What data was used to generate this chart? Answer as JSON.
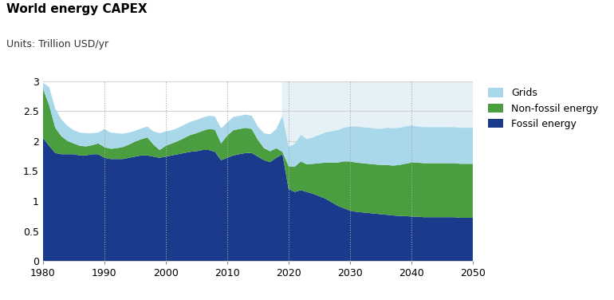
{
  "title": "World energy CAPEX",
  "subtitle": "Units: Trillion USD/yr",
  "colors": {
    "grids": "#a8d8ea",
    "non_fossil": "#4a9e3f",
    "fossil": "#1a3a8c",
    "forecast_bg": "#daeaf5"
  },
  "forecast_start": 2019,
  "xlim": [
    1980,
    2050
  ],
  "ylim": [
    0,
    3.0
  ],
  "yticks": [
    0,
    0.5,
    1.0,
    1.5,
    2.0,
    2.5,
    3.0
  ],
  "xticks": [
    1980,
    1990,
    2000,
    2010,
    2020,
    2030,
    2040,
    2050
  ],
  "vgrid_ticks": [
    1990,
    2000,
    2010,
    2020,
    2030,
    2040
  ],
  "legend_labels": [
    "Grids",
    "Non-fossil energy",
    "Fossil energy"
  ],
  "years": [
    1980,
    1981,
    1982,
    1983,
    1984,
    1985,
    1986,
    1987,
    1988,
    1989,
    1990,
    1991,
    1992,
    1993,
    1994,
    1995,
    1996,
    1997,
    1998,
    1999,
    2000,
    2001,
    2002,
    2003,
    2004,
    2005,
    2006,
    2007,
    2008,
    2009,
    2010,
    2011,
    2012,
    2013,
    2014,
    2015,
    2016,
    2017,
    2018,
    2019,
    2020,
    2021,
    2022,
    2023,
    2024,
    2025,
    2026,
    2027,
    2028,
    2029,
    2030,
    2031,
    2032,
    2033,
    2034,
    2035,
    2036,
    2037,
    2038,
    2039,
    2040,
    2041,
    2042,
    2043,
    2044,
    2045,
    2046,
    2047,
    2048,
    2049,
    2050
  ],
  "fossil": [
    2.05,
    1.92,
    1.8,
    1.78,
    1.78,
    1.78,
    1.76,
    1.76,
    1.78,
    1.78,
    1.72,
    1.7,
    1.7,
    1.7,
    1.72,
    1.74,
    1.76,
    1.76,
    1.74,
    1.72,
    1.74,
    1.76,
    1.78,
    1.8,
    1.82,
    1.83,
    1.85,
    1.85,
    1.82,
    1.68,
    1.72,
    1.76,
    1.78,
    1.8,
    1.8,
    1.74,
    1.68,
    1.65,
    1.72,
    1.78,
    1.2,
    1.15,
    1.18,
    1.15,
    1.12,
    1.08,
    1.04,
    0.98,
    0.92,
    0.88,
    0.84,
    0.82,
    0.81,
    0.8,
    0.79,
    0.78,
    0.77,
    0.76,
    0.75,
    0.75,
    0.74,
    0.74,
    0.73,
    0.73,
    0.73,
    0.73,
    0.73,
    0.73,
    0.72,
    0.72,
    0.72
  ],
  "non_fossil": [
    0.82,
    0.68,
    0.42,
    0.3,
    0.22,
    0.18,
    0.16,
    0.15,
    0.15,
    0.18,
    0.18,
    0.17,
    0.18,
    0.2,
    0.22,
    0.25,
    0.27,
    0.3,
    0.2,
    0.13,
    0.18,
    0.2,
    0.22,
    0.25,
    0.28,
    0.3,
    0.32,
    0.35,
    0.37,
    0.28,
    0.37,
    0.42,
    0.42,
    0.42,
    0.4,
    0.28,
    0.2,
    0.18,
    0.16,
    0.04,
    0.38,
    0.42,
    0.48,
    0.46,
    0.5,
    0.55,
    0.6,
    0.66,
    0.72,
    0.78,
    0.82,
    0.82,
    0.82,
    0.82,
    0.82,
    0.82,
    0.83,
    0.83,
    0.85,
    0.87,
    0.9,
    0.9,
    0.9,
    0.9,
    0.9,
    0.9,
    0.9,
    0.9,
    0.9,
    0.9,
    0.9
  ],
  "grids": [
    0.1,
    0.3,
    0.32,
    0.28,
    0.25,
    0.22,
    0.22,
    0.22,
    0.2,
    0.18,
    0.3,
    0.27,
    0.25,
    0.22,
    0.2,
    0.18,
    0.18,
    0.18,
    0.22,
    0.28,
    0.24,
    0.22,
    0.22,
    0.22,
    0.22,
    0.22,
    0.22,
    0.22,
    0.22,
    0.25,
    0.22,
    0.22,
    0.22,
    0.22,
    0.22,
    0.22,
    0.25,
    0.28,
    0.32,
    0.6,
    0.32,
    0.38,
    0.44,
    0.42,
    0.44,
    0.47,
    0.5,
    0.52,
    0.54,
    0.56,
    0.58,
    0.6,
    0.6,
    0.6,
    0.6,
    0.6,
    0.62,
    0.62,
    0.62,
    0.62,
    0.62,
    0.6,
    0.6,
    0.6,
    0.6,
    0.6,
    0.6,
    0.6,
    0.6,
    0.6,
    0.6
  ]
}
